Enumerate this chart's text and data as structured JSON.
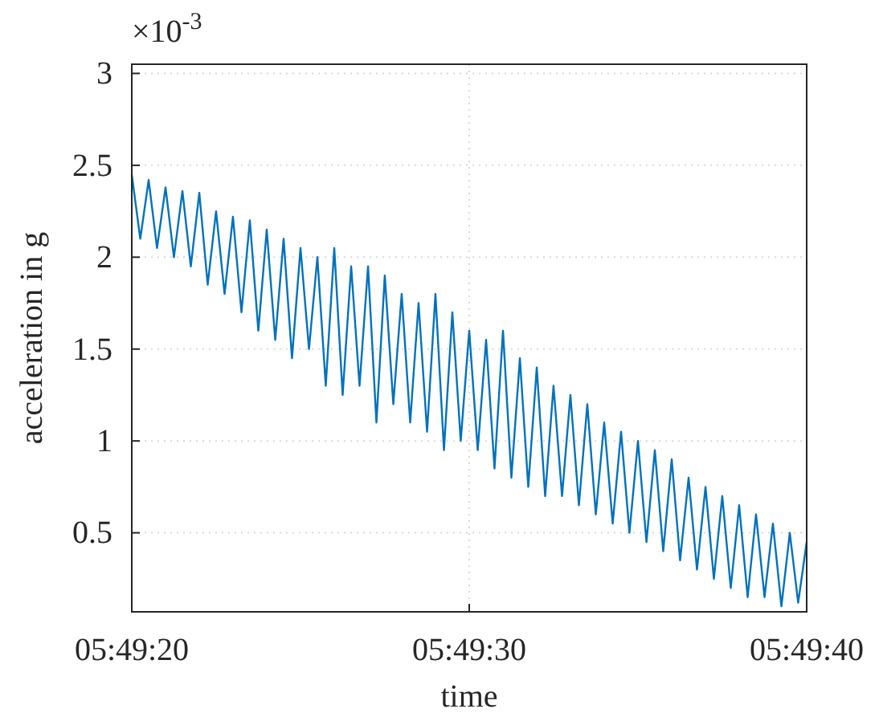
{
  "chart_data": {
    "type": "line",
    "xlabel": "time",
    "ylabel": "acceleration in g",
    "annotations": [
      "×10$^{-3}$"
    ],
    "xlim": [
      5.822222,
      5.827778
    ],
    "xticks": [
      {
        "value": 5.822222,
        "label": "05:49:20"
      },
      {
        "value": 5.825,
        "label": "05:49:30"
      },
      {
        "value": 5.827778,
        "label": "05:49:40"
      }
    ],
    "ylim": [
      0.07,
      3.05
    ],
    "yticks": [
      0.5,
      1,
      1.5,
      2,
      2.5,
      3
    ],
    "grid": true,
    "marker": "none",
    "line_style": "solid",
    "series": [
      {
        "color": "#0072bd",
        "x": [
          5.822222,
          5.822292,
          5.822361,
          5.82243,
          5.8225,
          5.822569,
          5.822639,
          5.822708,
          5.822778,
          5.822847,
          5.822916,
          5.822986,
          5.823055,
          5.823125,
          5.823194,
          5.823264,
          5.823333,
          5.823403,
          5.823472,
          5.823541,
          5.823611,
          5.823681,
          5.82375,
          5.823819,
          5.823889,
          5.823958,
          5.824028,
          5.824097,
          5.824167,
          5.824236,
          5.824305,
          5.824375,
          5.824444,
          5.824514,
          5.824583,
          5.824653,
          5.824722,
          5.824792,
          5.824861,
          5.82493,
          5.825,
          5.82507,
          5.825139,
          5.825208,
          5.825278,
          5.825347,
          5.825417,
          5.825486,
          5.825556,
          5.825625,
          5.825694,
          5.825764,
          5.825833,
          5.825903,
          5.825972,
          5.826042,
          5.826111,
          5.826181,
          5.82625,
          5.826319,
          5.826389,
          5.826459,
          5.826528,
          5.826597,
          5.826667,
          5.826736,
          5.826806,
          5.826875,
          5.826945,
          5.827014,
          5.827083,
          5.827153,
          5.827222,
          5.827292,
          5.827361,
          5.827431,
          5.8275,
          5.82757,
          5.827639,
          5.827708,
          5.827778
        ],
        "values": [
          2.45,
          2.1,
          2.42,
          2.05,
          2.38,
          2.0,
          2.36,
          1.95,
          2.35,
          1.85,
          2.25,
          1.8,
          2.22,
          1.7,
          2.2,
          1.6,
          2.15,
          1.55,
          2.1,
          1.45,
          2.05,
          1.5,
          2.0,
          1.3,
          2.05,
          1.25,
          1.95,
          1.3,
          1.95,
          1.1,
          1.9,
          1.2,
          1.8,
          1.1,
          1.75,
          1.05,
          1.8,
          0.95,
          1.7,
          1.0,
          1.6,
          0.95,
          1.55,
          0.85,
          1.6,
          0.8,
          1.45,
          0.75,
          1.4,
          0.7,
          1.3,
          0.7,
          1.25,
          0.65,
          1.2,
          0.6,
          1.1,
          0.55,
          1.05,
          0.5,
          1.0,
          0.45,
          0.95,
          0.4,
          0.9,
          0.35,
          0.8,
          0.3,
          0.75,
          0.25,
          0.7,
          0.2,
          0.65,
          0.15,
          0.6,
          0.15,
          0.55,
          0.1,
          0.5,
          0.12,
          0.45
        ]
      }
    ]
  }
}
